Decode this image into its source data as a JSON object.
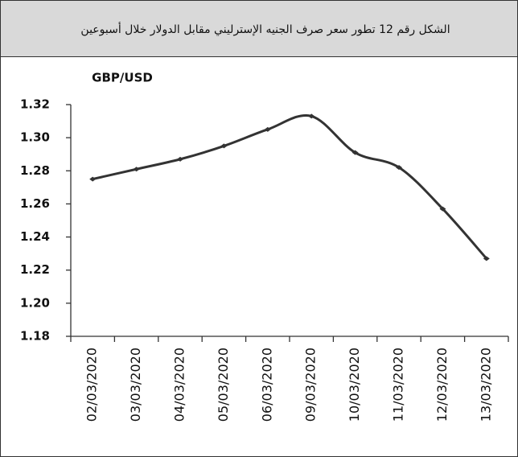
{
  "chart_data": {
    "type": "line",
    "title": "الشكل رقم 12 تطور سعر صرف الجنيه الإسترليني مقابل الدولار خلال أسبوعين",
    "y_axis_label": "GBP/USD",
    "categories": [
      "02/03/2020",
      "03/03/2020",
      "04/03/2020",
      "05/03/2020",
      "06/03/2020",
      "09/03/2020",
      "10/03/2020",
      "11/03/2020",
      "12/03/2020",
      "13/03/2020"
    ],
    "series": [
      {
        "name": "GBP/USD",
        "color": "#333333",
        "values": [
          1.275,
          1.281,
          1.287,
          1.295,
          1.305,
          1.313,
          1.291,
          1.282,
          1.257,
          1.227
        ]
      }
    ],
    "ylim": [
      1.18,
      1.32
    ],
    "yticks": [
      1.18,
      {
        "value": 1.2,
        "label": "1.20"
      },
      1.22,
      1.24,
      1.26,
      1.28,
      {
        "value": 1.3,
        "label": "1.30"
      },
      1.32
    ],
    "grid": false
  }
}
